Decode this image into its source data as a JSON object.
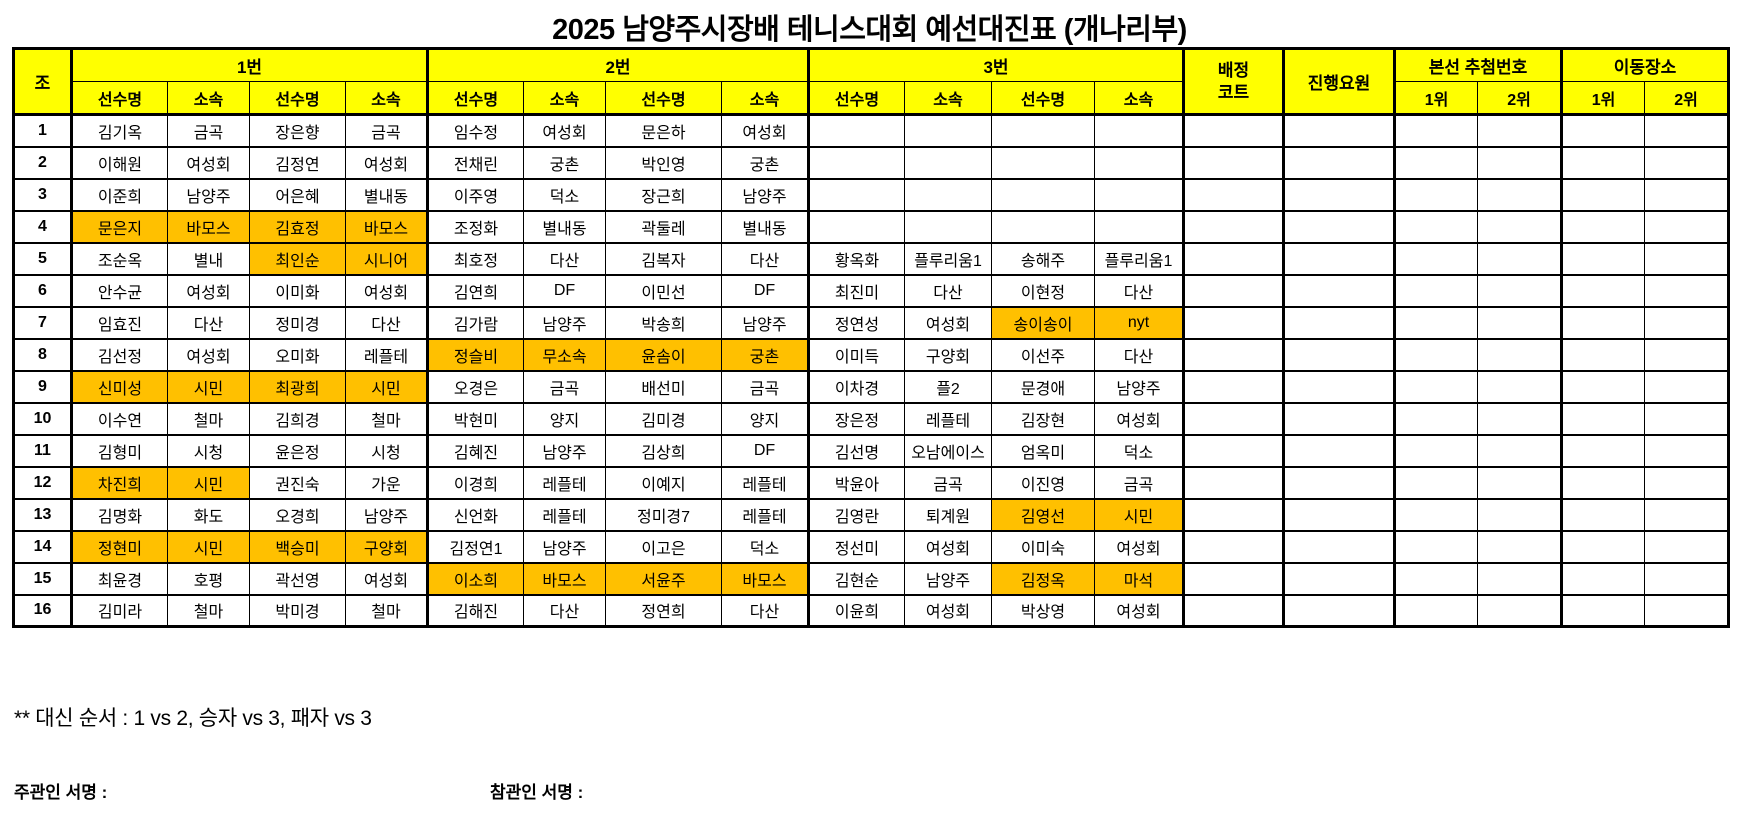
{
  "title": "2025 남양주시장배 테니스대회 예선대진표 (개나리부)",
  "colors": {
    "header_bg": "#FFFF00",
    "highlight_bg": "#FFC000",
    "border": "#000000",
    "cell_bg": "#FFFFFF"
  },
  "table": {
    "corner_header": "조",
    "groups": [
      {
        "label": "1번",
        "sub": [
          "선수명",
          "소속",
          "선수명",
          "소속"
        ]
      },
      {
        "label": "2번",
        "sub": [
          "선수명",
          "소속",
          "선수명",
          "소속"
        ]
      },
      {
        "label": "3번",
        "sub": [
          "선수명",
          "소속",
          "선수명",
          "소속"
        ]
      }
    ],
    "court_header_lines": [
      "배정",
      "코트"
    ],
    "staff_header": "진행요원",
    "draw_header": {
      "label": "본선 추첨번호",
      "sub": [
        "1위",
        "2위"
      ]
    },
    "move_header": {
      "label": "이동장소",
      "sub": [
        "1위",
        "2위"
      ]
    },
    "extra_cols_per_row": 6,
    "rows": [
      {
        "no": "1",
        "cells": [
          "김기옥",
          "금곡",
          "장은향",
          "금곡",
          "임수정",
          "여성회",
          "문은하",
          "여성회",
          "",
          "",
          "",
          ""
        ],
        "highlight": []
      },
      {
        "no": "2",
        "cells": [
          "이해원",
          "여성회",
          "김정연",
          "여성회",
          "전채린",
          "궁촌",
          "박인영",
          "궁촌",
          "",
          "",
          "",
          ""
        ],
        "highlight": []
      },
      {
        "no": "3",
        "cells": [
          "이준희",
          "남양주",
          "어은혜",
          "별내동",
          "이주영",
          "덕소",
          "장근희",
          "남양주",
          "",
          "",
          "",
          ""
        ],
        "highlight": []
      },
      {
        "no": "4",
        "cells": [
          "문은지",
          "바모스",
          "김효정",
          "바모스",
          "조정화",
          "별내동",
          "곽둘레",
          "별내동",
          "",
          "",
          "",
          ""
        ],
        "highlight": [
          0,
          1,
          2,
          3
        ]
      },
      {
        "no": "5",
        "cells": [
          "조순옥",
          "별내",
          "최인순",
          "시니어",
          "최호정",
          "다산",
          "김복자",
          "다산",
          "황옥화",
          "플루리움1",
          "송해주",
          "플루리움1"
        ],
        "highlight": [
          2,
          3
        ]
      },
      {
        "no": "6",
        "cells": [
          "안수균",
          "여성회",
          "이미화",
          "여성회",
          "김연희",
          "DF",
          "이민선",
          "DF",
          "최진미",
          "다산",
          "이현정",
          "다산"
        ],
        "highlight": []
      },
      {
        "no": "7",
        "cells": [
          "임효진",
          "다산",
          "정미경",
          "다산",
          "김가람",
          "남양주",
          "박송희",
          "남양주",
          "정연성",
          "여성회",
          "송이송이",
          "nyt"
        ],
        "highlight": [
          10,
          11
        ]
      },
      {
        "no": "8",
        "cells": [
          "김선정",
          "여성회",
          "오미화",
          "레플테",
          "정슬비",
          "무소속",
          "윤솜이",
          "궁촌",
          "이미득",
          "구양회",
          "이선주",
          "다산"
        ],
        "highlight": [
          4,
          5,
          6,
          7
        ]
      },
      {
        "no": "9",
        "cells": [
          "신미성",
          "시민",
          "최광희",
          "시민",
          "오경은",
          "금곡",
          "배선미",
          "금곡",
          "이차경",
          "플2",
          "문경애",
          "남양주"
        ],
        "highlight": [
          0,
          1,
          2,
          3
        ]
      },
      {
        "no": "10",
        "cells": [
          "이수연",
          "철마",
          "김희경",
          "철마",
          "박현미",
          "양지",
          "김미경",
          "양지",
          "장은정",
          "레플테",
          "김장현",
          "여성회"
        ],
        "highlight": []
      },
      {
        "no": "11",
        "cells": [
          "김형미",
          "시청",
          "윤은정",
          "시청",
          "김혜진",
          "남양주",
          "김상희",
          "DF",
          "김선명",
          "오남에이스",
          "엄옥미",
          "덕소"
        ],
        "highlight": []
      },
      {
        "no": "12",
        "cells": [
          "차진희",
          "시민",
          "권진숙",
          "가운",
          "이경희",
          "레플테",
          "이예지",
          "레플테",
          "박윤아",
          "금곡",
          "이진영",
          "금곡"
        ],
        "highlight": [
          0,
          1
        ]
      },
      {
        "no": "13",
        "cells": [
          "김명화",
          "화도",
          "오경희",
          "남양주",
          "신언화",
          "레플테",
          "정미경7",
          "레플테",
          "김영란",
          "퇴계원",
          "김영선",
          "시민"
        ],
        "highlight": [
          10,
          11
        ]
      },
      {
        "no": "14",
        "cells": [
          "정현미",
          "시민",
          "백승미",
          "구양회",
          "김정연1",
          "남양주",
          "이고은",
          "덕소",
          "정선미",
          "여성회",
          "이미숙",
          "여성회"
        ],
        "highlight": [
          0,
          1,
          2,
          3
        ]
      },
      {
        "no": "15",
        "cells": [
          "최윤경",
          "호평",
          "곽선영",
          "여성회",
          "이소희",
          "바모스",
          "서윤주",
          "바모스",
          "김현순",
          "남양주",
          "김정옥",
          "마석"
        ],
        "highlight": [
          4,
          5,
          6,
          7,
          10,
          11
        ]
      },
      {
        "no": "16",
        "cells": [
          "김미라",
          "철마",
          "박미경",
          "철마",
          "김해진",
          "다산",
          "정연희",
          "다산",
          "이윤희",
          "여성회",
          "박상영",
          "여성회"
        ],
        "highlight": []
      }
    ]
  },
  "footer": {
    "note": "** 대신 순서 : 1 vs 2, 승자 vs 3, 패자 vs 3",
    "sign_left": "주관인 서명 :",
    "sign_right": "참관인 서명 :"
  }
}
